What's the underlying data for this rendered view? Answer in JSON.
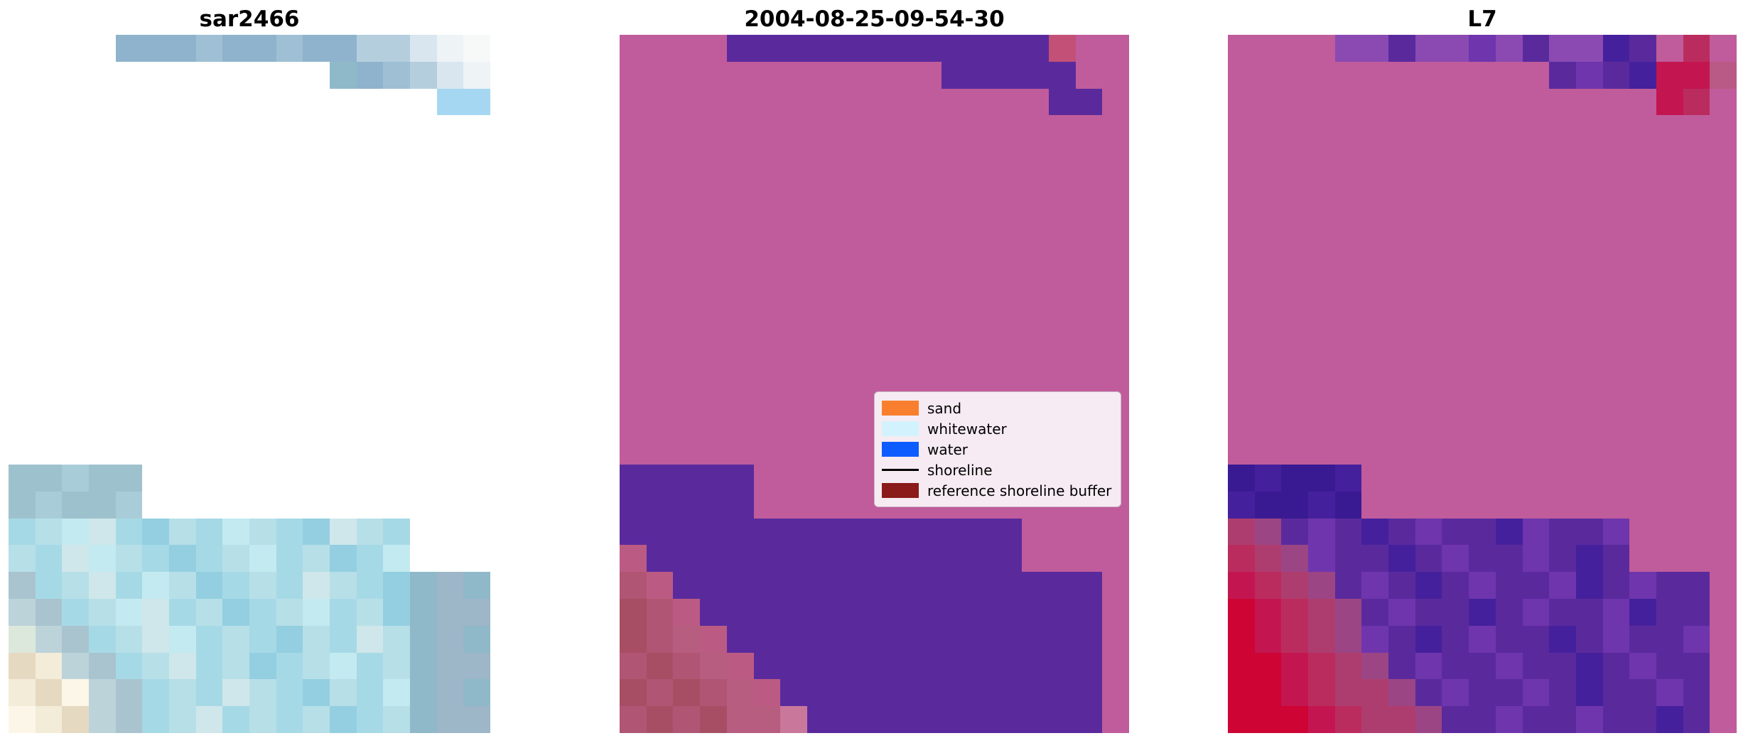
{
  "figure": {
    "background": "#ffffff"
  },
  "legend": {
    "background": "#f6ebf2",
    "border": "#c9b9c4",
    "entries": [
      {
        "label": "sand",
        "type": "patch",
        "swatch": "#f97f2f"
      },
      {
        "label": "whitewater",
        "type": "patch",
        "swatch": "#d2f3fd"
      },
      {
        "label": "water",
        "type": "patch",
        "swatch": "#0d5cff"
      },
      {
        "label": "shoreline",
        "type": "line",
        "swatch": "#000000"
      },
      {
        "label": "reference shoreline buffer",
        "type": "patch",
        "swatch": "#8b1a1a"
      }
    ]
  },
  "chart_data": [
    {
      "type": "heatmap",
      "title": "sar2466",
      "background": "#ffffff",
      "grid_cols": 18,
      "grid_rows": 26,
      "palette": {
        "a": "#8fb3cc",
        "b": "#9fc0d4",
        "c": "#b5cede",
        "d": "#d9e6ef",
        "e": "#eef3f6",
        "f": "#f7f8f8",
        "g": "#a5d7f2",
        "n": "#8fb9c9",
        "h": "#9dc2cd",
        "i": "#a9cdd8",
        "j": "#a6d9e6",
        "k": "#c2eaf0",
        "l": "#93cfe0",
        "m": "#b7dfe8",
        "w": "#cfe7ea",
        "s": "#a9c4cf",
        "x": "#bcd3da",
        "y": "#dce8dc",
        "o": "#9db6c8",
        "t": "#e6d9c1",
        "u": "#f3ecd8",
        "v": "#fbf6e8"
      },
      "pixels": [
        "....aaabaabaaccdef",
        "............nabcde",
        "................gg",
        "",
        "",
        "",
        "",
        "",
        "",
        "",
        "",
        "",
        "",
        "",
        "",
        "",
        "hhihh",
        "hihhi",
        "jmkwjlmjkmjlwmj",
        "mjwkmjljmkjmljk",
        "sjmwjkmljmjwmjlnon",
        "xsjmkwjmljmkjmlnoo",
        "yxsjmwkjmjlmjwmnon",
        "tuxsjmwjmljmkjmnoo",
        "utvxsjmjwmjlmjknon",
        "vutxsjmwjmjmljmnoo"
      ]
    },
    {
      "type": "heatmap",
      "title": "2004-08-25-09-54-30",
      "background": "#c05c9b",
      "grid_cols": 19,
      "grid_rows": 26,
      "palette": {
        "P": "#5a2a9d",
        "r": "#c25077",
        "q": "#bb5b84",
        "s": "#b05573",
        "t": "#a84e64",
        "u": "#b75d80",
        "v": "#ca779c"
      },
      "pixels": [
        "....PPPPPPPPPPPPr",
        "............PPPPP",
        "................PP",
        "",
        "",
        "",
        "",
        "",
        "",
        "",
        "",
        "",
        "",
        "",
        "",
        "",
        "PPPPP",
        "PPPPP",
        "PPPPPPPPPPPPPPP",
        "qPPPPPPPPPPPPPP",
        "sqPPPPPPPPPPPPPPPP",
        "tsqPPPPPPPPPPPPPPP",
        "tsuqPPPPPPPPPPPPPP",
        "stsuqPPPPPPPPPPPPP",
        "tstsuqPPPPPPPPPPPP",
        "ststuuvPPPPPPPPPPP"
      ]
    },
    {
      "type": "heatmap",
      "title": "L7",
      "background": "#c05c9b",
      "grid_cols": 19,
      "grid_rows": 26,
      "palette": {
        "A": "#8a4ab2",
        "B": "#5a2a9d",
        "V": "#6f35ad",
        "C": "#45209c",
        "D": "#3a1a92",
        "R": "#c31650",
        "S": "#bb2c5e",
        "T": "#ad3d6f",
        "U": "#9c4585",
        "E": "#cd0434",
        "q": "#b85a85"
      },
      "pixels": [
        "....AABAAVABAACB.S",
        "............BVBCRRq",
        "................RS",
        "",
        "",
        "",
        "",
        "",
        "",
        "",
        "",
        "",
        "",
        "",
        "",
        "",
        "DCDDC",
        "CDDCD",
        "TUBVBCBVBBCVBBV",
        "STUVBBCBVBBVBCB",
        "RSTUBVBCBVBBVCBVBB",
        "ERSTUBVBBCBVBBVCBB",
        "ERSTUVBCBVBBCBVBBV",
        "EERSTUBVBBVBBCBVBB",
        "EERSTTUBVBBVBCBBVB",
        "EEERSTTUBBVBBVBBCB"
      ]
    }
  ]
}
